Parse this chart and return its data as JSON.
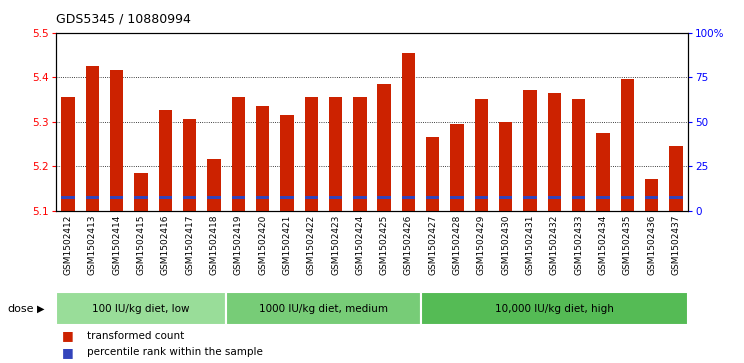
{
  "title": "GDS5345 / 10880994",
  "samples": [
    "GSM1502412",
    "GSM1502413",
    "GSM1502414",
    "GSM1502415",
    "GSM1502416",
    "GSM1502417",
    "GSM1502418",
    "GSM1502419",
    "GSM1502420",
    "GSM1502421",
    "GSM1502422",
    "GSM1502423",
    "GSM1502424",
    "GSM1502425",
    "GSM1502426",
    "GSM1502427",
    "GSM1502428",
    "GSM1502429",
    "GSM1502430",
    "GSM1502431",
    "GSM1502432",
    "GSM1502433",
    "GSM1502434",
    "GSM1502435",
    "GSM1502436",
    "GSM1502437"
  ],
  "transformed_counts": [
    5.355,
    5.425,
    5.415,
    5.185,
    5.325,
    5.305,
    5.215,
    5.355,
    5.335,
    5.315,
    5.355,
    5.355,
    5.355,
    5.385,
    5.455,
    5.265,
    5.295,
    5.35,
    5.3,
    5.37,
    5.365,
    5.35,
    5.275,
    5.395,
    5.17,
    5.245
  ],
  "percentile_ranks": [
    10,
    12,
    14,
    7,
    10,
    11,
    9,
    12,
    11,
    11,
    11,
    11,
    11,
    14,
    16,
    8,
    10,
    11,
    8,
    12,
    12,
    10,
    8,
    14,
    6,
    8
  ],
  "y_min": 5.1,
  "y_max": 5.5,
  "bar_color": "#cc2200",
  "percentile_color": "#3344bb",
  "bar_width": 0.55,
  "groups": [
    {
      "label": "100 IU/kg diet, low",
      "start": 0,
      "end": 7,
      "color": "#99dd99"
    },
    {
      "label": "1000 IU/kg diet, medium",
      "start": 7,
      "end": 15,
      "color": "#77cc77"
    },
    {
      "label": "10,000 IU/kg diet, high",
      "start": 15,
      "end": 26,
      "color": "#55bb55"
    }
  ],
  "dose_label": "dose",
  "legend_items": [
    {
      "label": "transformed count",
      "color": "#cc2200"
    },
    {
      "label": "percentile rank within the sample",
      "color": "#3344bb"
    }
  ],
  "right_axis_ticks": [
    0,
    25,
    50,
    75,
    100
  ],
  "right_axis_labels": [
    "0",
    "25",
    "50",
    "75",
    "100%"
  ],
  "yticks": [
    5.1,
    5.2,
    5.3,
    5.4,
    5.5
  ],
  "ytick_labels": [
    "5.1",
    "5.2",
    "5.3",
    "5.4",
    "5.5"
  ],
  "background_color": "#ffffff",
  "xticklabel_bg": "#cccccc",
  "grid_lines": [
    5.2,
    5.3,
    5.4
  ]
}
